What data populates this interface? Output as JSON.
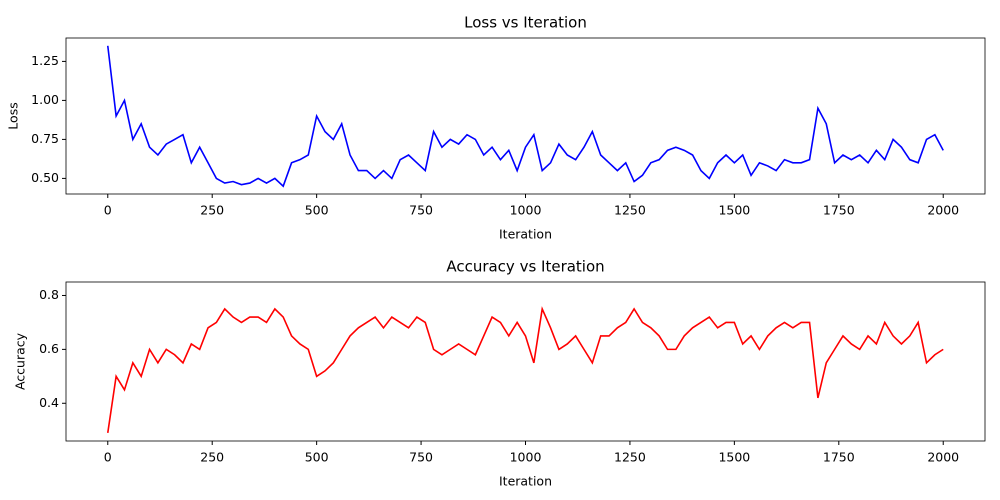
{
  "chart_data": [
    {
      "type": "line",
      "title": "Loss vs Iteration",
      "x_label": "Iteration",
      "y_label": "Loss",
      "x": [
        0,
        20,
        40,
        60,
        80,
        100,
        120,
        140,
        160,
        180,
        200,
        220,
        240,
        260,
        280,
        300,
        320,
        340,
        360,
        380,
        400,
        420,
        440,
        460,
        480,
        500,
        520,
        540,
        560,
        580,
        600,
        620,
        640,
        660,
        680,
        700,
        720,
        740,
        760,
        780,
        800,
        820,
        840,
        860,
        880,
        900,
        920,
        940,
        960,
        980,
        1000,
        1020,
        1040,
        1060,
        1080,
        1100,
        1120,
        1140,
        1160,
        1180,
        1200,
        1220,
        1240,
        1260,
        1280,
        1300,
        1320,
        1340,
        1360,
        1380,
        1400,
        1420,
        1440,
        1460,
        1480,
        1500,
        1520,
        1540,
        1560,
        1580,
        1600,
        1620,
        1640,
        1660,
        1680,
        1700,
        1720,
        1740,
        1760,
        1780,
        1800,
        1820,
        1840,
        1860,
        1880,
        1900,
        1920,
        1940,
        1960,
        1980,
        2000
      ],
      "series": [
        {
          "color": "#0000ff",
          "values": [
            1.35,
            0.9,
            1.0,
            0.75,
            0.85,
            0.7,
            0.65,
            0.72,
            0.75,
            0.78,
            0.6,
            0.7,
            0.6,
            0.5,
            0.47,
            0.48,
            0.46,
            0.47,
            0.5,
            0.47,
            0.5,
            0.45,
            0.6,
            0.62,
            0.65,
            0.9,
            0.8,
            0.75,
            0.85,
            0.65,
            0.55,
            0.55,
            0.5,
            0.55,
            0.5,
            0.62,
            0.65,
            0.6,
            0.55,
            0.8,
            0.7,
            0.75,
            0.72,
            0.78,
            0.75,
            0.65,
            0.7,
            0.62,
            0.68,
            0.55,
            0.7,
            0.78,
            0.55,
            0.6,
            0.72,
            0.65,
            0.62,
            0.7,
            0.8,
            0.65,
            0.6,
            0.55,
            0.6,
            0.48,
            0.52,
            0.6,
            0.62,
            0.68,
            0.7,
            0.68,
            0.65,
            0.55,
            0.5,
            0.6,
            0.65,
            0.6,
            0.65,
            0.52,
            0.6,
            0.58,
            0.55,
            0.62,
            0.6,
            0.6,
            0.62,
            0.95,
            0.85,
            0.6,
            0.65,
            0.62,
            0.65,
            0.6,
            0.68,
            0.62,
            0.75,
            0.7,
            0.62,
            0.6,
            0.75,
            0.78,
            0.68
          ]
        }
      ],
      "xlim": [
        -100,
        2100
      ],
      "xticks": [
        0,
        250,
        500,
        750,
        1000,
        1250,
        1500,
        1750,
        2000
      ],
      "ylim": [
        0.4,
        1.4
      ],
      "yticks": [
        {
          "value": 0.5,
          "label": "0.50"
        },
        0.75,
        {
          "value": 1,
          "label": "1.00"
        },
        1.25
      ]
    },
    {
      "type": "line",
      "title": "Accuracy vs Iteration",
      "x_label": "Iteration",
      "y_label": "Accuracy",
      "x": [
        0,
        20,
        40,
        60,
        80,
        100,
        120,
        140,
        160,
        180,
        200,
        220,
        240,
        260,
        280,
        300,
        320,
        340,
        360,
        380,
        400,
        420,
        440,
        460,
        480,
        500,
        520,
        540,
        560,
        580,
        600,
        620,
        640,
        660,
        680,
        700,
        720,
        740,
        760,
        780,
        800,
        820,
        840,
        860,
        880,
        900,
        920,
        940,
        960,
        980,
        1000,
        1020,
        1040,
        1060,
        1080,
        1100,
        1120,
        1140,
        1160,
        1180,
        1200,
        1220,
        1240,
        1260,
        1280,
        1300,
        1320,
        1340,
        1360,
        1380,
        1400,
        1420,
        1440,
        1460,
        1480,
        1500,
        1520,
        1540,
        1560,
        1580,
        1600,
        1620,
        1640,
        1660,
        1680,
        1700,
        1720,
        1740,
        1760,
        1780,
        1800,
        1820,
        1840,
        1860,
        1880,
        1900,
        1920,
        1940,
        1960,
        1980,
        2000
      ],
      "series": [
        {
          "color": "#ff0000",
          "values": [
            0.29,
            0.5,
            0.45,
            0.55,
            0.5,
            0.6,
            0.55,
            0.6,
            0.58,
            0.55,
            0.62,
            0.6,
            0.68,
            0.7,
            0.75,
            0.72,
            0.7,
            0.72,
            0.72,
            0.7,
            0.75,
            0.72,
            0.65,
            0.62,
            0.6,
            0.5,
            0.52,
            0.55,
            0.6,
            0.65,
            0.68,
            0.7,
            0.72,
            0.68,
            0.72,
            0.7,
            0.68,
            0.72,
            0.7,
            0.6,
            0.58,
            0.6,
            0.62,
            0.6,
            0.58,
            0.65,
            0.72,
            0.7,
            0.65,
            0.7,
            0.65,
            0.55,
            0.75,
            0.68,
            0.6,
            0.62,
            0.65,
            0.6,
            0.55,
            0.65,
            0.65,
            0.68,
            0.7,
            0.75,
            0.7,
            0.68,
            0.65,
            0.6,
            0.6,
            0.65,
            0.68,
            0.7,
            0.72,
            0.68,
            0.7,
            0.7,
            0.62,
            0.65,
            0.6,
            0.65,
            0.68,
            0.7,
            0.68,
            0.7,
            0.7,
            0.42,
            0.55,
            0.6,
            0.65,
            0.62,
            0.6,
            0.65,
            0.62,
            0.7,
            0.65,
            0.62,
            0.65,
            0.7,
            0.55,
            0.58,
            0.6
          ]
        }
      ],
      "xlim": [
        -100,
        2100
      ],
      "xticks": [
        0,
        250,
        500,
        750,
        1000,
        1250,
        1500,
        1750,
        2000
      ],
      "ylim": [
        0.26,
        0.85
      ],
      "yticks": [
        0.4,
        0.6,
        0.8
      ]
    }
  ]
}
